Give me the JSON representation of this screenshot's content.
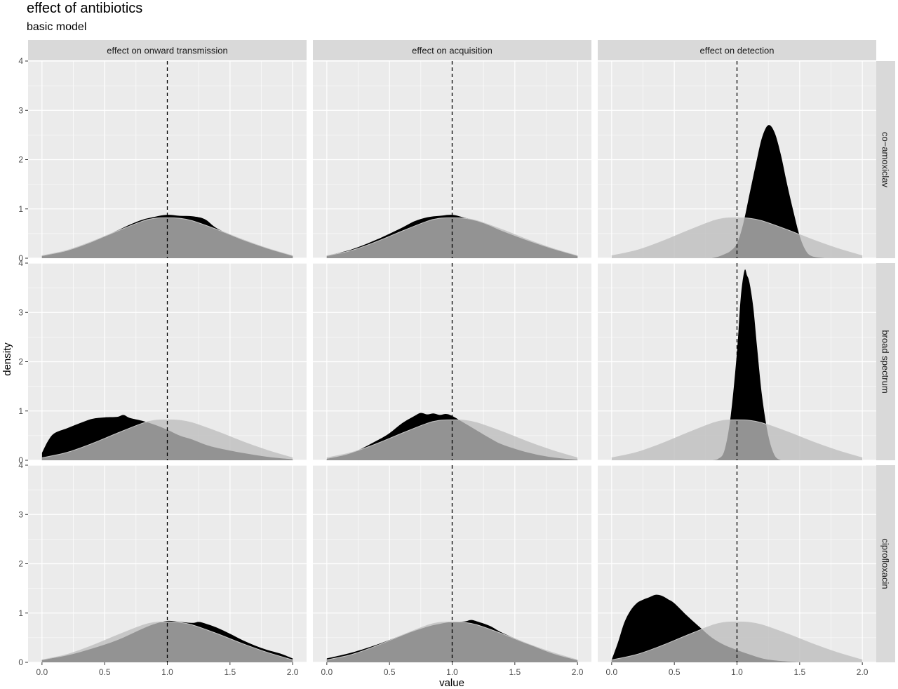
{
  "chart_data": {
    "type": "area",
    "title": "effect of antibiotics",
    "subtitle": "basic model",
    "xlabel": "value",
    "ylabel": "density",
    "xlim": [
      0,
      2
    ],
    "ylim": [
      0,
      4
    ],
    "x_ticks": [
      "0.0",
      "0.5",
      "1.0",
      "1.5",
      "2.0"
    ],
    "y_ticks": [
      "0",
      "1",
      "2",
      "3",
      "4"
    ],
    "reference_line": {
      "x": 1.0,
      "style": "dashed",
      "color": "#000000"
    },
    "grid": true,
    "col_facets": [
      "effect on onward transmission",
      "effect on acquisition",
      "effect on detection"
    ],
    "row_facets": [
      "co−amoxiclav",
      "broad spectrum",
      "ciprofloxacin"
    ],
    "colors": {
      "posterior": "#000000",
      "prior": "#bdbdbd",
      "panel_bg": "#ebebeb",
      "strip_bg": "#d9d9d9",
      "grid": "#ffffff"
    },
    "prior": {
      "x": [
        0.0,
        0.2,
        0.4,
        0.6,
        0.8,
        0.9,
        1.0,
        1.1,
        1.2,
        1.4,
        1.6,
        1.8,
        2.0
      ],
      "y": [
        0.05,
        0.16,
        0.34,
        0.55,
        0.75,
        0.81,
        0.82,
        0.81,
        0.76,
        0.58,
        0.38,
        0.2,
        0.05
      ]
    },
    "panels": [
      {
        "row": 0,
        "col": 0,
        "posterior": {
          "x": [
            0.0,
            0.2,
            0.4,
            0.6,
            0.7,
            0.8,
            0.9,
            1.0,
            1.1,
            1.2,
            1.3,
            1.4,
            1.6,
            1.8,
            2.0
          ],
          "y": [
            0.05,
            0.15,
            0.33,
            0.56,
            0.68,
            0.78,
            0.84,
            0.88,
            0.86,
            0.85,
            0.79,
            0.6,
            0.37,
            0.2,
            0.05
          ]
        }
      },
      {
        "row": 0,
        "col": 1,
        "posterior": {
          "x": [
            0.0,
            0.2,
            0.4,
            0.6,
            0.7,
            0.8,
            0.9,
            1.0,
            1.1,
            1.2,
            1.3,
            1.4,
            1.6,
            1.8,
            2.0
          ],
          "y": [
            0.05,
            0.18,
            0.38,
            0.62,
            0.75,
            0.83,
            0.86,
            0.88,
            0.82,
            0.76,
            0.66,
            0.55,
            0.36,
            0.19,
            0.05
          ]
        }
      },
      {
        "row": 0,
        "col": 2,
        "posterior": {
          "x": [
            0.8,
            0.85,
            0.9,
            0.95,
            1.0,
            1.05,
            1.1,
            1.15,
            1.2,
            1.25,
            1.3,
            1.35,
            1.4,
            1.45,
            1.5,
            1.55,
            1.6,
            1.7
          ],
          "y": [
            0.0,
            0.03,
            0.08,
            0.15,
            0.3,
            0.7,
            1.3,
            1.9,
            2.45,
            2.7,
            2.55,
            2.1,
            1.5,
            0.95,
            0.45,
            0.15,
            0.04,
            0.0
          ]
        }
      },
      {
        "row": 1,
        "col": 0,
        "posterior": {
          "x": [
            0.0,
            0.05,
            0.1,
            0.2,
            0.3,
            0.4,
            0.5,
            0.6,
            0.65,
            0.7,
            0.8,
            0.9,
            1.0,
            1.1,
            1.2,
            1.3,
            1.4,
            1.6,
            1.8,
            2.0
          ],
          "y": [
            0.15,
            0.4,
            0.55,
            0.65,
            0.75,
            0.84,
            0.87,
            0.88,
            0.92,
            0.86,
            0.8,
            0.72,
            0.62,
            0.5,
            0.42,
            0.32,
            0.25,
            0.15,
            0.07,
            0.02
          ]
        }
      },
      {
        "row": 1,
        "col": 1,
        "posterior": {
          "x": [
            0.0,
            0.2,
            0.4,
            0.5,
            0.6,
            0.7,
            0.75,
            0.8,
            0.85,
            0.9,
            0.95,
            1.0,
            1.1,
            1.2,
            1.3,
            1.4,
            1.6,
            1.8,
            2.0
          ],
          "y": [
            0.03,
            0.15,
            0.4,
            0.55,
            0.75,
            0.9,
            0.96,
            0.93,
            0.95,
            0.92,
            0.94,
            0.9,
            0.75,
            0.6,
            0.45,
            0.32,
            0.16,
            0.06,
            0.01
          ]
        }
      },
      {
        "row": 1,
        "col": 2,
        "posterior": {
          "x": [
            0.8,
            0.85,
            0.9,
            0.95,
            1.0,
            1.03,
            1.06,
            1.08,
            1.1,
            1.13,
            1.16,
            1.2,
            1.25,
            1.3,
            1.35
          ],
          "y": [
            0.0,
            0.03,
            0.2,
            0.9,
            2.2,
            3.3,
            3.85,
            3.75,
            3.6,
            3.1,
            2.3,
            1.3,
            0.5,
            0.1,
            0.0
          ]
        }
      },
      {
        "row": 2,
        "col": 0,
        "posterior": {
          "x": [
            0.0,
            0.2,
            0.4,
            0.6,
            0.8,
            0.9,
            1.0,
            1.1,
            1.2,
            1.25,
            1.3,
            1.4,
            1.5,
            1.6,
            1.7,
            1.8,
            1.9,
            2.0
          ],
          "y": [
            0.05,
            0.14,
            0.28,
            0.45,
            0.68,
            0.78,
            0.84,
            0.82,
            0.8,
            0.82,
            0.79,
            0.7,
            0.58,
            0.45,
            0.34,
            0.25,
            0.18,
            0.08
          ]
        }
      },
      {
        "row": 2,
        "col": 1,
        "posterior": {
          "x": [
            0.0,
            0.2,
            0.4,
            0.6,
            0.8,
            0.9,
            1.0,
            1.1,
            1.15,
            1.2,
            1.3,
            1.4,
            1.6,
            1.8,
            2.0
          ],
          "y": [
            0.08,
            0.2,
            0.36,
            0.55,
            0.72,
            0.78,
            0.82,
            0.83,
            0.86,
            0.83,
            0.74,
            0.6,
            0.38,
            0.18,
            0.04
          ]
        }
      },
      {
        "row": 2,
        "col": 2,
        "posterior": {
          "x": [
            0.0,
            0.05,
            0.1,
            0.15,
            0.2,
            0.25,
            0.3,
            0.35,
            0.4,
            0.45,
            0.5,
            0.6,
            0.7,
            0.8,
            0.9,
            1.0,
            1.1,
            1.2,
            1.3,
            1.5
          ],
          "y": [
            0.05,
            0.4,
            0.8,
            1.05,
            1.2,
            1.27,
            1.32,
            1.37,
            1.35,
            1.28,
            1.2,
            0.95,
            0.72,
            0.5,
            0.35,
            0.25,
            0.16,
            0.08,
            0.04,
            0.0
          ]
        }
      }
    ]
  }
}
